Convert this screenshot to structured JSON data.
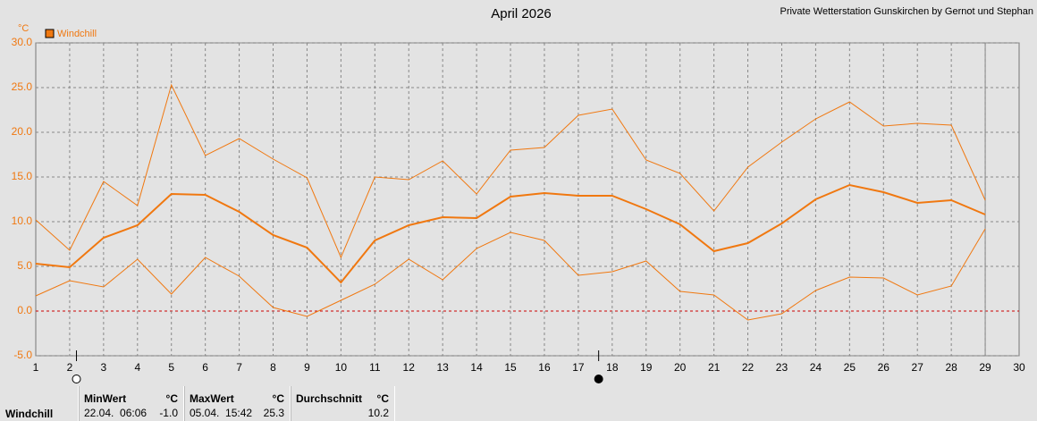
{
  "chart_data": {
    "type": "line",
    "title": "April 2026",
    "subtitle": "Private Wetterstation Gunskirchen by Gernot und Stephan",
    "y_unit": "°C",
    "x": [
      1,
      2,
      3,
      4,
      5,
      6,
      7,
      8,
      9,
      10,
      11,
      12,
      13,
      14,
      15,
      16,
      17,
      18,
      19,
      20,
      21,
      22,
      23,
      24,
      25,
      26,
      27,
      28,
      29
    ],
    "series": [
      {
        "name": "Windchill",
        "color": "#f07810",
        "width": 2,
        "values": [
          5.3,
          4.9,
          8.2,
          9.6,
          13.1,
          13.0,
          11.1,
          8.5,
          7.1,
          3.2,
          7.9,
          9.6,
          10.5,
          10.4,
          12.8,
          13.2,
          12.9,
          12.9,
          11.4,
          9.7,
          6.7,
          7.6,
          9.8,
          12.5,
          14.1,
          13.3,
          12.1,
          12.4,
          10.8
        ]
      },
      {
        "color": "#f07810",
        "width": 1,
        "values": [
          10.2,
          6.8,
          14.5,
          11.8,
          25.3,
          17.4,
          19.3,
          17.0,
          14.9,
          6.0,
          15.0,
          14.7,
          16.8,
          13.1,
          18.0,
          18.3,
          21.9,
          22.6,
          16.9,
          15.4,
          11.2,
          16.1,
          18.9,
          21.5,
          23.4,
          20.7,
          21.0,
          20.8,
          12.4
        ]
      },
      {
        "color": "#f07810",
        "width": 1,
        "values": [
          1.7,
          3.4,
          2.7,
          5.8,
          1.9,
          6.0,
          3.9,
          0.4,
          -0.6,
          1.2,
          3.0,
          5.8,
          3.5,
          7.0,
          8.8,
          7.9,
          4.0,
          4.4,
          5.6,
          2.2,
          1.8,
          -1.0,
          -0.3,
          2.3,
          3.8,
          3.7,
          1.8,
          2.8,
          9.2
        ]
      }
    ],
    "xlim": [
      1,
      30
    ],
    "xticks": [
      1,
      2,
      3,
      4,
      5,
      6,
      7,
      8,
      9,
      10,
      11,
      12,
      13,
      14,
      15,
      16,
      17,
      18,
      19,
      20,
      21,
      22,
      23,
      24,
      25,
      26,
      27,
      28,
      29,
      30
    ],
    "ylim": [
      -5,
      30
    ],
    "yticks": [
      {
        "value": -5,
        "label": "-5.0"
      },
      {
        "value": 0,
        "label": "0.0"
      },
      {
        "value": 5,
        "label": "5.0"
      },
      {
        "value": 10,
        "label": "10.0"
      },
      {
        "value": 15,
        "label": "15.0"
      },
      {
        "value": 20,
        "label": "20.0"
      },
      {
        "value": 25,
        "label": "25.0"
      },
      {
        "value": 30,
        "label": "30.0"
      }
    ],
    "grid": true,
    "zero_line_color": "#cc0000",
    "current_day": 29,
    "markers": [
      {
        "x": 2.2,
        "filled": false
      },
      {
        "x": 17.6,
        "filled": true
      }
    ]
  },
  "stats": {
    "name": "Windchill",
    "min": {
      "label": "MinWert",
      "unit": "°C",
      "time": "22.04.  06:06",
      "value": "-1.0"
    },
    "max": {
      "label": "MaxWert",
      "unit": "°C",
      "time": "05.04.  15:42",
      "value": "25.3"
    },
    "avg": {
      "label": "Durchschnitt",
      "unit": "°C",
      "value": "10.2"
    }
  }
}
